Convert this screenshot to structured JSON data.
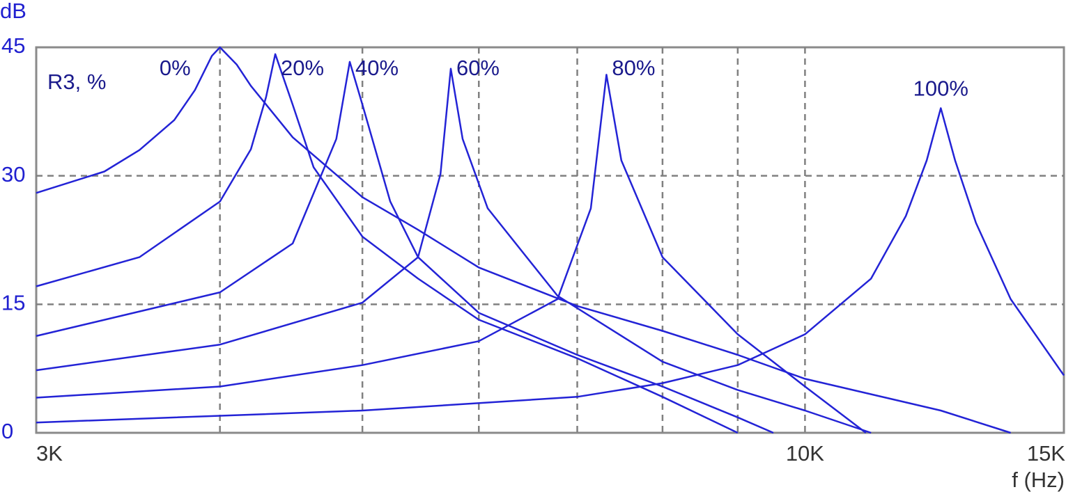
{
  "chart_data": {
    "type": "line",
    "y_label": "dB",
    "x_label": "f (Hz)",
    "annotation": "R3, %",
    "xscale": "log",
    "xlim": [
      3000,
      15000
    ],
    "ylim": [
      0,
      45
    ],
    "xticks": [
      {
        "value": 3000,
        "label": "3K"
      },
      {
        "value": 10000,
        "label": "10K"
      },
      {
        "value": 15000,
        "label": "15K"
      }
    ],
    "xgrid": [
      4000,
      5000,
      6000,
      7000,
      8000,
      9000,
      10000
    ],
    "yticks": [
      0,
      15,
      30,
      45
    ],
    "grid": true,
    "series": [
      {
        "name": "0%",
        "color": "#2323d6",
        "x": [
          3000,
          3338,
          3526,
          3724,
          3846,
          3950,
          4000,
          4106,
          4199,
          4483,
          5000,
          5455,
          6000,
          7000,
          8000,
          9000,
          10000,
          12370,
          13800
        ],
        "values": [
          28.0,
          30.5,
          33.0,
          36.5,
          40.0,
          44.0,
          45.0,
          43.0,
          40.5,
          34.5,
          27.5,
          23.7,
          19.3,
          14.8,
          11.9,
          9.1,
          6.3,
          2.6,
          0
        ]
      },
      {
        "name": "20%",
        "color": "#2323d6",
        "x": [
          3000,
          3526,
          4000,
          4199,
          4300,
          4362,
          4483,
          4632,
          5000,
          5455,
          6000,
          7000,
          8000,
          9000
        ],
        "values": [
          17.1,
          20.5,
          27.0,
          33.1,
          39.2,
          44.2,
          38.3,
          31.0,
          22.9,
          18.0,
          13.2,
          8.7,
          4.2,
          0
        ]
      },
      {
        "name": "40%",
        "color": "#2323d6",
        "x": [
          3000,
          4000,
          4483,
          4800,
          4902,
          5000,
          5223,
          5455,
          6000,
          7000,
          8000,
          9000,
          9517
        ],
        "values": [
          11.3,
          16.4,
          22.1,
          34.3,
          43.3,
          38.3,
          27.0,
          20.5,
          14.0,
          9.1,
          5.4,
          1.8,
          0
        ]
      },
      {
        "name": "60%",
        "color": "#2323d6",
        "x": [
          3000,
          4000,
          5000,
          5455,
          5650,
          5742,
          5850,
          6084,
          6786,
          8000,
          9000,
          10000,
          11090
        ],
        "values": [
          7.3,
          10.3,
          15.2,
          20.5,
          30.2,
          42.5,
          34.3,
          26.2,
          16.0,
          8.3,
          5.0,
          2.6,
          0
        ]
      },
      {
        "name": "80%",
        "color": "#2323d6",
        "x": [
          3000,
          4000,
          5000,
          6000,
          6786,
          7150,
          7327,
          7500,
          8000,
          9000,
          10000,
          11000
        ],
        "values": [
          4.1,
          5.4,
          7.9,
          10.7,
          15.6,
          26.2,
          41.8,
          31.8,
          20.5,
          11.5,
          5.4,
          0
        ]
      },
      {
        "name": "100%",
        "color": "#2323d6",
        "x": [
          3000,
          5000,
          7000,
          8000,
          9000,
          10000,
          11090,
          11710,
          12100,
          12370,
          12650,
          13070,
          13800,
          15000
        ],
        "values": [
          1.2,
          2.6,
          4.2,
          5.8,
          7.9,
          11.5,
          18.0,
          25.3,
          31.8,
          37.9,
          31.8,
          24.5,
          15.6,
          6.7
        ]
      }
    ]
  }
}
